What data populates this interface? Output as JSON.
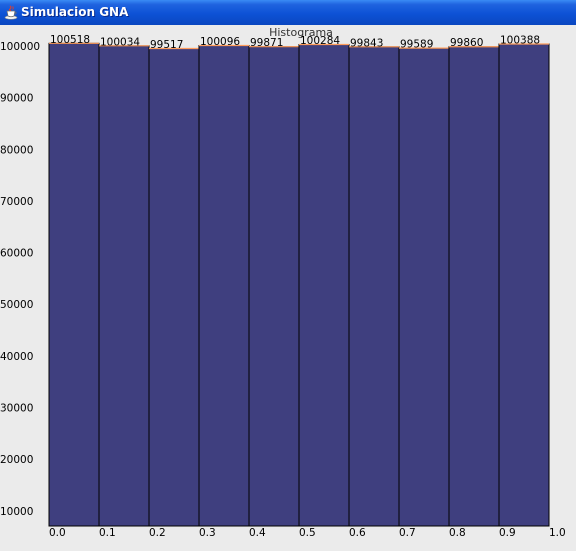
{
  "window": {
    "title": "Simulacion GNA",
    "icon": "java-cup-icon"
  },
  "colors": {
    "bar_fill": "#3f3f7f",
    "bar_stroke": "#000000",
    "bar_top_line": "#ff9d5c",
    "background": "#ebebeb"
  },
  "chart_data": {
    "type": "bar",
    "title": "Histograma",
    "xlabel": "",
    "ylabel": "",
    "x_ticks": [
      "0.0",
      "0.1",
      "0.2",
      "0.3",
      "0.4",
      "0.5",
      "0.6",
      "0.7",
      "0.8",
      "0.9",
      "1.0"
    ],
    "bins": [
      0.0,
      0.1,
      0.2,
      0.3,
      0.4,
      0.5,
      0.6,
      0.7,
      0.8,
      0.9
    ],
    "values": [
      100518,
      100034,
      99517,
      100096,
      99871,
      100284,
      99843,
      99589,
      99860,
      100388
    ],
    "y_ticks": [
      "10000",
      "20000",
      "30000",
      "40000",
      "50000",
      "60000",
      "70000",
      "80000",
      "90000",
      "100000"
    ],
    "ylim": [
      3000,
      100000
    ],
    "xlim": [
      0.0,
      1.0
    ],
    "grid": false,
    "legend": "none"
  }
}
